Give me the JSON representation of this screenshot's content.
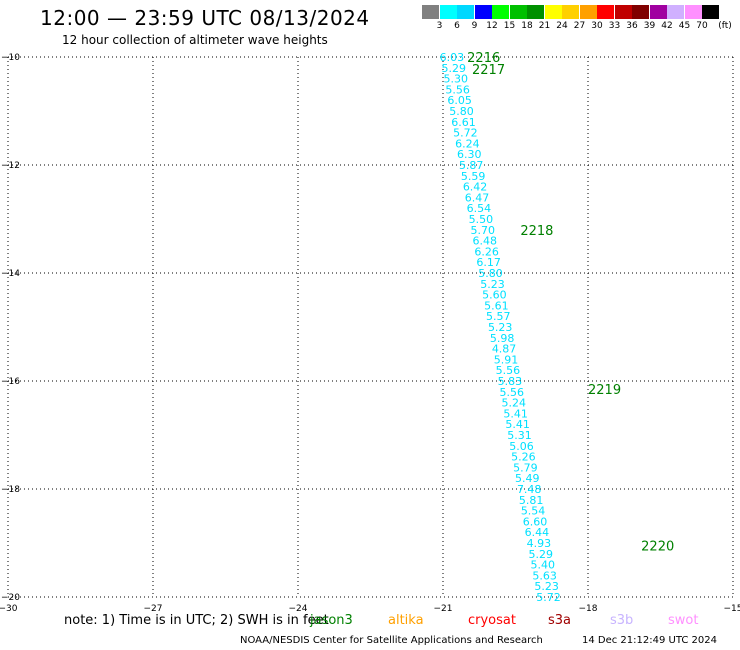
{
  "header": {
    "title": "12:00 — 23:59 UTC 08/13/2024",
    "subtitle": "12 hour collection of altimeter wave heights"
  },
  "color_scale": {
    "unit": "(ft)",
    "colors": [
      "#808080",
      "#00ffff",
      "#00d8ff",
      "#0000ff",
      "#00ff00",
      "#00c000",
      "#009000",
      "#ffff00",
      "#ffd000",
      "#ffa000",
      "#ff0000",
      "#c00000",
      "#800000",
      "#a000a0",
      "#d0b0ff",
      "#ff90ff",
      "#000000"
    ],
    "labels": [
      "3",
      "6",
      "9",
      "12",
      "15",
      "18",
      "21",
      "24",
      "27",
      "30",
      "33",
      "36",
      "39",
      "42",
      "45",
      "70"
    ]
  },
  "map": {
    "lon_ticks": [
      "−30",
      "−27",
      "−24",
      "−21",
      "−18",
      "−15"
    ],
    "lat_ticks": [
      "−10",
      "−12",
      "−14",
      "−16",
      "−18",
      "−20"
    ],
    "lon_values": [
      -30,
      -27,
      -24,
      -21,
      -18,
      -15
    ],
    "lat_values": [
      -10,
      -12,
      -14,
      -16,
      -18,
      -20
    ],
    "lon_range": [
      -30,
      -15
    ],
    "lat_range": [
      -10,
      -20
    ],
    "grid": "dotted",
    "track_color": "#00e0ff",
    "time_color": "#008000",
    "track": [
      {
        "lat": -10.0,
        "lon": -21.07,
        "v": "6.03"
      },
      {
        "lat": -10.2,
        "lon": -21.03,
        "v": "5.29"
      },
      {
        "lat": -10.4,
        "lon": -20.99,
        "v": "5.30"
      },
      {
        "lat": -10.6,
        "lon": -20.95,
        "v": "5.56"
      },
      {
        "lat": -10.8,
        "lon": -20.91,
        "v": "6.05"
      },
      {
        "lat": -11.0,
        "lon": -20.87,
        "v": "5.80"
      },
      {
        "lat": -11.2,
        "lon": -20.83,
        "v": "6.61"
      },
      {
        "lat": -11.4,
        "lon": -20.79,
        "v": "5.72"
      },
      {
        "lat": -11.6,
        "lon": -20.75,
        "v": "6.24"
      },
      {
        "lat": -11.8,
        "lon": -20.71,
        "v": "6.30"
      },
      {
        "lat": -12.0,
        "lon": -20.67,
        "v": "5.87"
      },
      {
        "lat": -12.2,
        "lon": -20.63,
        "v": "5.59"
      },
      {
        "lat": -12.4,
        "lon": -20.59,
        "v": "6.42"
      },
      {
        "lat": -12.6,
        "lon": -20.55,
        "v": "6.47"
      },
      {
        "lat": -12.8,
        "lon": -20.51,
        "v": "6.54"
      },
      {
        "lat": -13.0,
        "lon": -20.47,
        "v": "5.50"
      },
      {
        "lat": -13.2,
        "lon": -20.43,
        "v": "5.70"
      },
      {
        "lat": -13.4,
        "lon": -20.39,
        "v": "6.48"
      },
      {
        "lat": -13.6,
        "lon": -20.35,
        "v": "6.26"
      },
      {
        "lat": -13.8,
        "lon": -20.31,
        "v": "6.17"
      },
      {
        "lat": -14.0,
        "lon": -20.27,
        "v": "5.80"
      },
      {
        "lat": -14.2,
        "lon": -20.23,
        "v": "5.23"
      },
      {
        "lat": -14.4,
        "lon": -20.19,
        "v": "5.60"
      },
      {
        "lat": -14.6,
        "lon": -20.15,
        "v": "5.61"
      },
      {
        "lat": -14.8,
        "lon": -20.11,
        "v": "5.57"
      },
      {
        "lat": -15.0,
        "lon": -20.07,
        "v": "5.23"
      },
      {
        "lat": -15.2,
        "lon": -20.03,
        "v": "5.98"
      },
      {
        "lat": -15.4,
        "lon": -19.99,
        "v": "4.87"
      },
      {
        "lat": -15.6,
        "lon": -19.95,
        "v": "5.91"
      },
      {
        "lat": -15.8,
        "lon": -19.91,
        "v": "5.56"
      },
      {
        "lat": -16.0,
        "lon": -19.87,
        "v": "5.83"
      },
      {
        "lat": -16.2,
        "lon": -19.83,
        "v": "5.56"
      },
      {
        "lat": -16.4,
        "lon": -19.79,
        "v": "5.24"
      },
      {
        "lat": -16.6,
        "lon": -19.75,
        "v": "5.41"
      },
      {
        "lat": -16.8,
        "lon": -19.71,
        "v": "5.41"
      },
      {
        "lat": -17.0,
        "lon": -19.67,
        "v": "5.31"
      },
      {
        "lat": -17.2,
        "lon": -19.63,
        "v": "5.06"
      },
      {
        "lat": -17.4,
        "lon": -19.59,
        "v": "5.26"
      },
      {
        "lat": -17.6,
        "lon": -19.55,
        "v": "5.79"
      },
      {
        "lat": -17.8,
        "lon": -19.51,
        "v": "5.49"
      },
      {
        "lat": -18.0,
        "lon": -19.47,
        "v": "7.48"
      },
      {
        "lat": -18.2,
        "lon": -19.43,
        "v": "5.81"
      },
      {
        "lat": -18.4,
        "lon": -19.39,
        "v": "5.54"
      },
      {
        "lat": -18.6,
        "lon": -19.35,
        "v": "6.60"
      },
      {
        "lat": -18.8,
        "lon": -19.31,
        "v": "6.44"
      },
      {
        "lat": -19.0,
        "lon": -19.27,
        "v": "4.93"
      },
      {
        "lat": -19.2,
        "lon": -19.23,
        "v": "5.29"
      },
      {
        "lat": -19.4,
        "lon": -19.19,
        "v": "5.40"
      },
      {
        "lat": -19.6,
        "lon": -19.15,
        "v": "5.63"
      },
      {
        "lat": -19.8,
        "lon": -19.11,
        "v": "5.23"
      },
      {
        "lat": -20.0,
        "lon": -19.07,
        "v": "5.72"
      }
    ],
    "time_labels": [
      {
        "lat": -10.0,
        "lon": -20.5,
        "t": "2216"
      },
      {
        "lat": -10.22,
        "lon": -20.4,
        "t": "2217"
      },
      {
        "lat": -13.2,
        "lon": -19.4,
        "t": "2218"
      },
      {
        "lat": -16.15,
        "lon": -18.0,
        "t": "2219"
      },
      {
        "lat": -19.05,
        "lon": -16.9,
        "t": "2220"
      }
    ]
  },
  "footer": {
    "note": "note:  1) Time is in UTC;  2) SWH is in feet",
    "satellites": [
      {
        "name": "jason3",
        "color": "#008000"
      },
      {
        "name": "altika",
        "color": "#ffa000"
      },
      {
        "name": "cryosat",
        "color": "#ff0000"
      },
      {
        "name": "s3a",
        "color": "#a00000"
      },
      {
        "name": "s3b",
        "color": "#c8b4ff"
      },
      {
        "name": "swot",
        "color": "#ff90ff"
      }
    ],
    "credit": "NOAA/NESDIS Center for Satellite Applications and Research",
    "timestamp": "14 Dec 21:12:49 UTC 2024"
  }
}
